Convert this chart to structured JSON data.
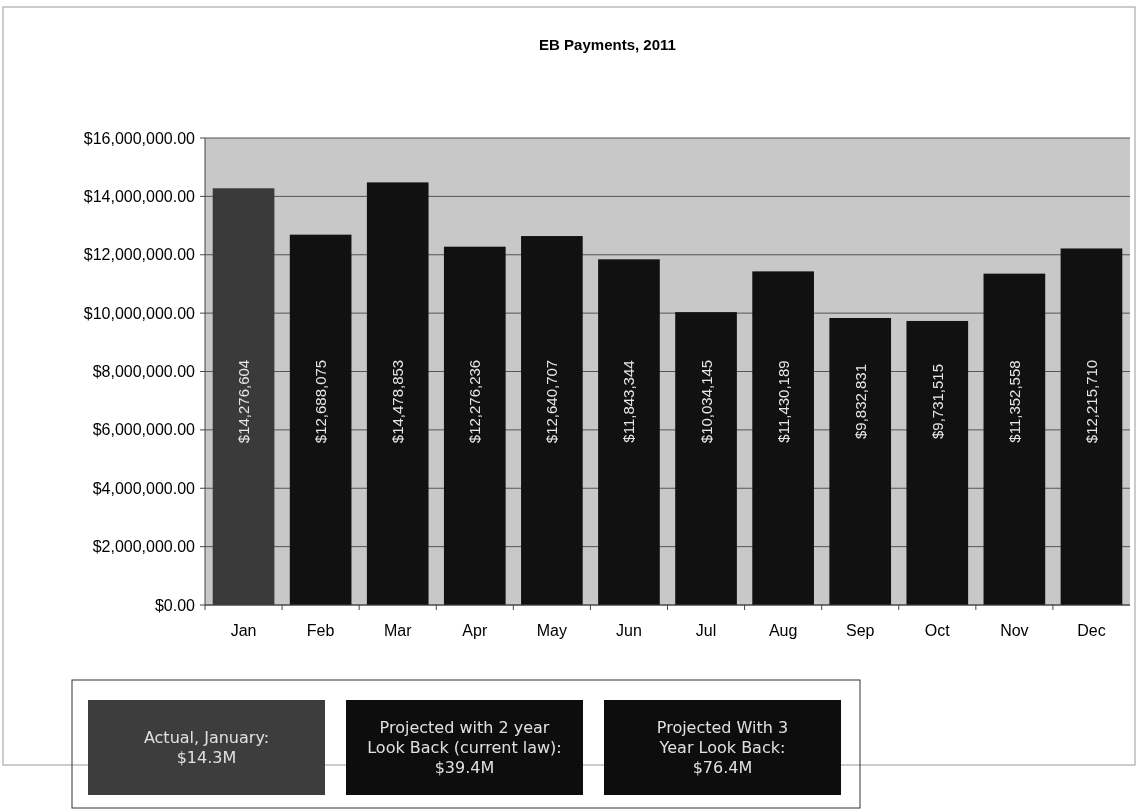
{
  "chart_data": {
    "type": "bar",
    "title": "EB Payments, 2011",
    "categories": [
      "Jan",
      "Feb",
      "Mar",
      "Apr",
      "May",
      "Jun",
      "Jul",
      "Aug",
      "Sep",
      "Oct",
      "Nov",
      "Dec"
    ],
    "values": [
      14276604,
      12688075,
      14478853,
      12276236,
      12640707,
      11843344,
      10034145,
      11430189,
      9832831,
      9731515,
      11352558,
      12215710
    ],
    "value_labels": [
      "$14,276,604",
      "$12,688,075",
      "$14,478,853",
      "$12,276,236",
      "$12,640,707",
      "$11,843,344",
      "$10,034,145",
      "$11,430,189",
      "$9,832,831",
      "$9,731,515",
      "$11,352,558",
      "$12,215,710"
    ],
    "colors": [
      "#3a3a3a",
      "#111111",
      "#111111",
      "#111111",
      "#111111",
      "#111111",
      "#111111",
      "#111111",
      "#111111",
      "#111111",
      "#111111",
      "#111111"
    ],
    "ylim": [
      0,
      16000000
    ],
    "yticks": [
      {
        "value": 0,
        "label": "$0.00"
      },
      {
        "value": 2000000,
        "label": "$2,000,000.00"
      },
      {
        "value": 4000000,
        "label": "$4,000,000.00"
      },
      {
        "value": 6000000,
        "label": "$6,000,000.00"
      },
      {
        "value": 8000000,
        "label": "$8,000,000.00"
      },
      {
        "value": 10000000,
        "label": "$10,000,000.00"
      },
      {
        "value": 12000000,
        "label": "$12,000,000.00"
      },
      {
        "value": 14000000,
        "label": "$14,000,000.00"
      },
      {
        "value": 16000000,
        "label": "$16,000,000.00"
      }
    ],
    "grid": "y",
    "annotations": [
      "Actual, January:\n$14.3M",
      "Projected with 2 year\nLook Back (current law):\n$39.4M",
      "Projected With 3\nYear Look Back:\n$76.4M"
    ]
  }
}
